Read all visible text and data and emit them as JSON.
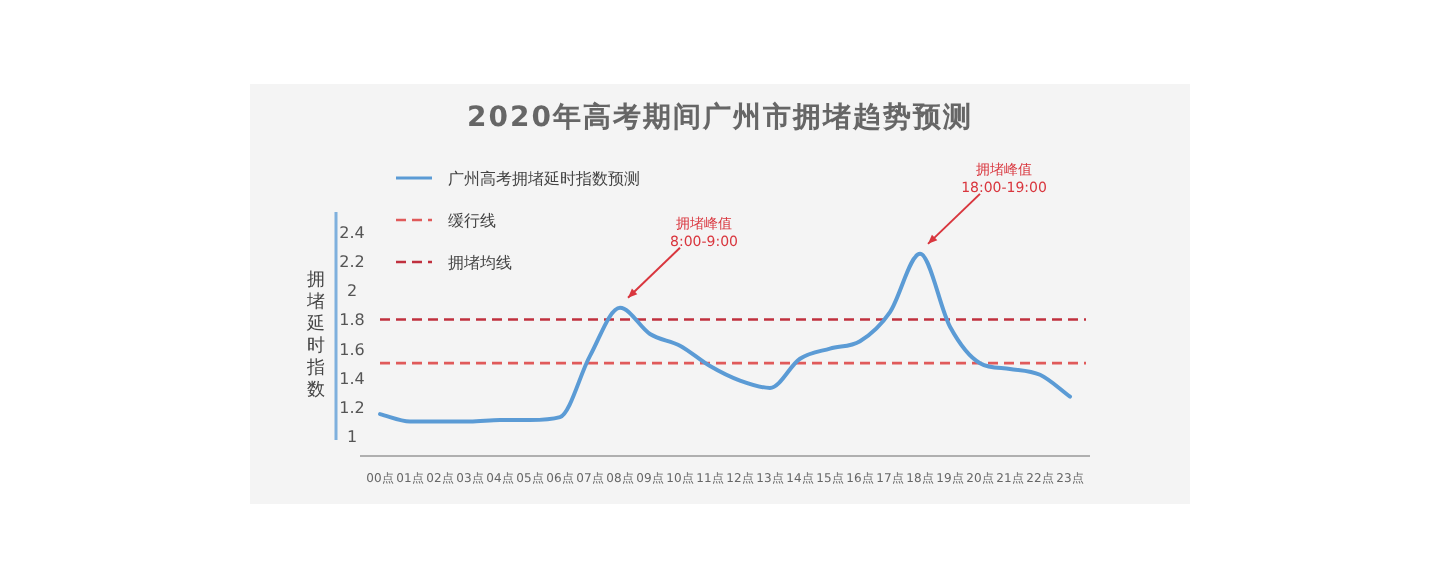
{
  "chart_data": {
    "type": "line",
    "title": "2020年高考期间广州市拥堵趋势预测",
    "ylabel": "拥堵延时指数",
    "categories": [
      "00点",
      "01点",
      "02点",
      "03点",
      "04点",
      "05点",
      "06点",
      "07点",
      "08点",
      "09点",
      "10点",
      "11点",
      "12点",
      "13点",
      "14点",
      "15点",
      "16点",
      "17点",
      "18点",
      "19点",
      "20点",
      "21点",
      "22点",
      "23点"
    ],
    "series": [
      {
        "name": "广州高考拥堵延时指数预测",
        "color": "#5b9bd5",
        "values": [
          1.15,
          1.1,
          1.1,
          1.1,
          1.11,
          1.11,
          1.13,
          1.55,
          1.88,
          1.7,
          1.62,
          1.48,
          1.38,
          1.33,
          1.53,
          1.6,
          1.65,
          1.85,
          2.25,
          1.75,
          1.5,
          1.46,
          1.42,
          1.27
        ]
      }
    ],
    "ylim": [
      1,
      2.4
    ],
    "yticks": [
      1,
      1.2,
      1.4,
      1.6,
      1.8,
      2,
      2.2,
      2.4
    ],
    "ref_lines": [
      {
        "axis": "y",
        "value": 1.5,
        "label": "缓行线",
        "color": "#e05a5a",
        "line_style": "dashed"
      },
      {
        "axis": "y",
        "value": 1.8,
        "label": "拥堵均线",
        "color": "#c0303e",
        "line_style": "dashed"
      }
    ],
    "annotations": [
      {
        "text": "拥堵峰值\n8:00-9:00",
        "x": "08点",
        "y": 1.88
      },
      {
        "text": "拥堵峰值\n18:00-19:00",
        "x": "18点",
        "y": 2.25
      }
    ],
    "legend": "top left"
  }
}
